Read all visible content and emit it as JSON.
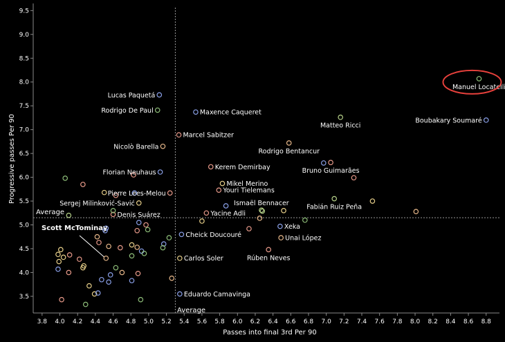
{
  "chart_data": {
    "type": "scatter",
    "xlabel": "Passes into final 3rd Per 90",
    "ylabel": "Progressive passes Per 90",
    "xlim": [
      3.7,
      8.95
    ],
    "ylim": [
      3.15,
      9.65
    ],
    "x_ticks": [
      "3.8",
      "4.0",
      "4.2",
      "4.4",
      "4.6",
      "4.8",
      "5.0",
      "5.2",
      "5.4",
      "5.6",
      "5.8",
      "6.0",
      "6.2",
      "6.4",
      "6.6",
      "6.8",
      "7.0",
      "7.2",
      "7.4",
      "7.6",
      "7.8",
      "8.0",
      "8.2",
      "8.4",
      "8.6",
      "8.8"
    ],
    "y_ticks": [
      "3.5",
      "4.0",
      "4.5",
      "5.0",
      "5.5",
      "6.0",
      "6.5",
      "7.0",
      "7.5",
      "8.0",
      "8.5",
      "9.0",
      "9.5"
    ],
    "grid": false,
    "average_x": 5.3,
    "average_y": 5.15,
    "average_label_x": "Average",
    "average_label_y": "Average",
    "highlight": "Manuel Locatelli",
    "annotation": "Scott McTominay",
    "colors": {
      "background": "#000000",
      "text": "#ffffff",
      "axis": "#8a8a8a",
      "highlight_ring": "#e8413c",
      "average_line": "#9a9a9a"
    },
    "points": [
      {
        "name": "Manuel Locatelli",
        "x": 8.72,
        "y": 8.07,
        "color": "#8fbf7a",
        "label_pos": "below"
      },
      {
        "name": "Boubakary Soumaré",
        "x": 8.8,
        "y": 7.2,
        "color": "#8aa0e8",
        "label_pos": "left"
      },
      {
        "name": "Lucas Paquetá",
        "x": 5.12,
        "y": 7.73,
        "color": "#8aa0e8",
        "label_pos": "left"
      },
      {
        "name": "Rodrigo De Paul",
        "x": 5.1,
        "y": 7.41,
        "color": "#8fbf7a",
        "label_pos": "left"
      },
      {
        "name": "Maxence Caqueret",
        "x": 5.53,
        "y": 7.37,
        "color": "#8aa0e8",
        "label_pos": "right"
      },
      {
        "name": "Matteo Ricci",
        "x": 7.16,
        "y": 7.26,
        "color": "#b8d48a",
        "label_pos": "below"
      },
      {
        "name": "Marcel Sabitzer",
        "x": 5.34,
        "y": 6.89,
        "color": "#e89a8a",
        "label_pos": "right"
      },
      {
        "name": "Nicolò Barella",
        "x": 5.16,
        "y": 6.65,
        "color": "#e8b88a",
        "label_pos": "left"
      },
      {
        "name": "Rodrigo Bentancur",
        "x": 6.58,
        "y": 6.72,
        "color": "#e8b88a",
        "label_pos": "below"
      },
      {
        "name": "Florian Neuhaus",
        "x": 5.13,
        "y": 6.11,
        "color": "#8aa0e8",
        "label_pos": "left"
      },
      {
        "name": "Kerem Demirbay",
        "x": 5.7,
        "y": 6.22,
        "color": "#e89a8a",
        "label_pos": "right"
      },
      {
        "name": "Bruno Guimarães",
        "x": 7.05,
        "y": 6.31,
        "color": "#e89a8a",
        "label_pos": "below"
      },
      {
        "name": "Mikel Merino",
        "x": 5.83,
        "y": 5.87,
        "color": "#e8d08a",
        "label_pos": "right"
      },
      {
        "name": "Pierre Lees-Melou",
        "x": 5.24,
        "y": 5.67,
        "color": "#e89a8a",
        "label_pos": "left"
      },
      {
        "name": "Youri Tielemans",
        "x": 5.79,
        "y": 5.73,
        "color": "#e89a8a",
        "label_pos": "right"
      },
      {
        "name": "Sergej Milinković-Savić",
        "x": 4.89,
        "y": 5.46,
        "color": "#e8d08a",
        "label_pos": "left"
      },
      {
        "name": "Ismaël Bennacer",
        "x": 6.27,
        "y": 5.31,
        "color": "#b8d48a",
        "label_pos": "above"
      },
      {
        "name": "Fabián Ruiz Peña",
        "x": 7.09,
        "y": 5.55,
        "color": "#b8d48a",
        "label_pos": "below"
      },
      {
        "name": "Denis Suárez",
        "x": 4.6,
        "y": 5.22,
        "color": "#e89a8a",
        "label_pos": "right"
      },
      {
        "name": "Yacine Adli",
        "x": 5.65,
        "y": 5.25,
        "color": "#e89a8a",
        "label_pos": "right"
      },
      {
        "name": "Xeka",
        "x": 6.48,
        "y": 4.97,
        "color": "#8aa0e8",
        "label_pos": "right"
      },
      {
        "name": "Cheick Doucouré",
        "x": 5.37,
        "y": 4.8,
        "color": "#8aa0e8",
        "label_pos": "right"
      },
      {
        "name": "Unai López",
        "x": 6.49,
        "y": 4.73,
        "color": "#e8b88a",
        "label_pos": "right"
      },
      {
        "name": "Rúben Neves",
        "x": 6.35,
        "y": 4.48,
        "color": "#e89a8a",
        "label_pos": "below"
      },
      {
        "name": "Carlos Soler",
        "x": 5.35,
        "y": 4.3,
        "color": "#e8d08a",
        "label_pos": "right"
      },
      {
        "name": "Eduardo Camavinga",
        "x": 5.35,
        "y": 3.55,
        "color": "#8aa0e8",
        "label_pos": "right"
      },
      {
        "name": "Scott McTominay",
        "x": 4.52,
        "y": 4.3,
        "color": "#e8b88a",
        "label_pos": "none"
      },
      {
        "name": "",
        "x": 4.06,
        "y": 5.98,
        "color": "#8fbf7a",
        "label_pos": "none"
      },
      {
        "name": "",
        "x": 4.26,
        "y": 5.85,
        "color": "#e89a8a",
        "label_pos": "none"
      },
      {
        "name": "",
        "x": 4.5,
        "y": 5.68,
        "color": "#e8d08a",
        "label_pos": "none"
      },
      {
        "name": "",
        "x": 4.83,
        "y": 6.05,
        "color": "#e89a8a",
        "label_pos": "none"
      },
      {
        "name": "",
        "x": 4.63,
        "y": 5.62,
        "color": "#e89a8a",
        "label_pos": "none"
      },
      {
        "name": "",
        "x": 4.84,
        "y": 5.67,
        "color": "#8aa0e8",
        "label_pos": "none"
      },
      {
        "name": "",
        "x": 5.87,
        "y": 5.4,
        "color": "#8aa0e8",
        "label_pos": "none"
      },
      {
        "name": "",
        "x": 6.52,
        "y": 5.3,
        "color": "#e8d08a",
        "label_pos": "none"
      },
      {
        "name": "",
        "x": 6.28,
        "y": 5.29,
        "color": "#b8d48a",
        "label_pos": "none"
      },
      {
        "name": "",
        "x": 7.31,
        "y": 5.99,
        "color": "#e89a8a",
        "label_pos": "none"
      },
      {
        "name": "",
        "x": 6.97,
        "y": 6.3,
        "color": "#8aa0e8",
        "label_pos": "none"
      },
      {
        "name": "",
        "x": 7.52,
        "y": 5.5,
        "color": "#e8d08a",
        "label_pos": "none"
      },
      {
        "name": "",
        "x": 8.01,
        "y": 5.28,
        "color": "#e8b88a",
        "label_pos": "none"
      },
      {
        "name": "",
        "x": 6.76,
        "y": 5.1,
        "color": "#8fbf7a",
        "label_pos": "none"
      },
      {
        "name": "",
        "x": 6.25,
        "y": 5.14,
        "color": "#e8b88a",
        "label_pos": "none"
      },
      {
        "name": "",
        "x": 6.13,
        "y": 4.92,
        "color": "#e89a8a",
        "label_pos": "none"
      },
      {
        "name": "",
        "x": 5.6,
        "y": 5.08,
        "color": "#e8d08a",
        "label_pos": "none"
      },
      {
        "name": "",
        "x": 4.6,
        "y": 5.3,
        "color": "#8fbf7a",
        "label_pos": "none"
      },
      {
        "name": "",
        "x": 4.1,
        "y": 5.2,
        "color": "#b8d48a",
        "label_pos": "none"
      },
      {
        "name": "",
        "x": 4.52,
        "y": 4.93,
        "color": "#8aa0e8",
        "label_pos": "none"
      },
      {
        "name": "",
        "x": 4.51,
        "y": 4.88,
        "color": "#8aa0e8",
        "label_pos": "none"
      },
      {
        "name": "",
        "x": 4.89,
        "y": 5.05,
        "color": "#8aa0e8",
        "label_pos": "none"
      },
      {
        "name": "",
        "x": 4.97,
        "y": 5.0,
        "color": "#e89a8a",
        "label_pos": "none"
      },
      {
        "name": "",
        "x": 4.99,
        "y": 4.9,
        "color": "#8fbf7a",
        "label_pos": "none"
      },
      {
        "name": "",
        "x": 4.87,
        "y": 4.88,
        "color": "#e89a8a",
        "label_pos": "none"
      },
      {
        "name": "",
        "x": 4.42,
        "y": 4.75,
        "color": "#e8b88a",
        "label_pos": "none"
      },
      {
        "name": "",
        "x": 4.44,
        "y": 4.63,
        "color": "#e89a8a",
        "label_pos": "none"
      },
      {
        "name": "",
        "x": 4.55,
        "y": 4.55,
        "color": "#e8b88a",
        "label_pos": "none"
      },
      {
        "name": "",
        "x": 4.68,
        "y": 4.52,
        "color": "#e89a8a",
        "label_pos": "none"
      },
      {
        "name": "",
        "x": 4.81,
        "y": 4.58,
        "color": "#e8d08a",
        "label_pos": "none"
      },
      {
        "name": "",
        "x": 4.87,
        "y": 4.53,
        "color": "#e8b88a",
        "label_pos": "none"
      },
      {
        "name": "",
        "x": 4.92,
        "y": 4.45,
        "color": "#8aa0e8",
        "label_pos": "none"
      },
      {
        "name": "",
        "x": 4.95,
        "y": 4.4,
        "color": "#8fbf7a",
        "label_pos": "none"
      },
      {
        "name": "",
        "x": 4.81,
        "y": 4.35,
        "color": "#8fbf7a",
        "label_pos": "none"
      },
      {
        "name": "",
        "x": 5.17,
        "y": 4.6,
        "color": "#8aa0e8",
        "label_pos": "none"
      },
      {
        "name": "",
        "x": 5.16,
        "y": 4.52,
        "color": "#8fbf7a",
        "label_pos": "none"
      },
      {
        "name": "",
        "x": 5.23,
        "y": 4.73,
        "color": "#8fbf7a",
        "label_pos": "none"
      },
      {
        "name": "",
        "x": 4.01,
        "y": 4.48,
        "color": "#e8d08a",
        "label_pos": "none"
      },
      {
        "name": "",
        "x": 3.98,
        "y": 4.38,
        "color": "#e8d08a",
        "label_pos": "none"
      },
      {
        "name": "",
        "x": 4.04,
        "y": 4.32,
        "color": "#e8d08a",
        "label_pos": "none"
      },
      {
        "name": "",
        "x": 3.99,
        "y": 4.23,
        "color": "#e8d08a",
        "label_pos": "none"
      },
      {
        "name": "",
        "x": 4.11,
        "y": 4.37,
        "color": "#e89a8a",
        "label_pos": "none"
      },
      {
        "name": "",
        "x": 4.22,
        "y": 4.28,
        "color": "#e89a8a",
        "label_pos": "none"
      },
      {
        "name": "",
        "x": 4.27,
        "y": 4.14,
        "color": "#e8d08a",
        "label_pos": "none"
      },
      {
        "name": "",
        "x": 4.26,
        "y": 4.1,
        "color": "#e8d08a",
        "label_pos": "none"
      },
      {
        "name": "",
        "x": 3.98,
        "y": 4.07,
        "color": "#8aa0e8",
        "label_pos": "none"
      },
      {
        "name": "",
        "x": 4.1,
        "y": 4.0,
        "color": "#e89a8a",
        "label_pos": "none"
      },
      {
        "name": "",
        "x": 4.63,
        "y": 4.1,
        "color": "#8fbf7a",
        "label_pos": "none"
      },
      {
        "name": "",
        "x": 4.7,
        "y": 4.0,
        "color": "#e8b88a",
        "label_pos": "none"
      },
      {
        "name": "",
        "x": 4.57,
        "y": 3.95,
        "color": "#8aa0e8",
        "label_pos": "none"
      },
      {
        "name": "",
        "x": 4.47,
        "y": 3.85,
        "color": "#8aa0e8",
        "label_pos": "none"
      },
      {
        "name": "",
        "x": 4.55,
        "y": 3.8,
        "color": "#8aa0e8",
        "label_pos": "none"
      },
      {
        "name": "",
        "x": 4.81,
        "y": 3.83,
        "color": "#8aa0e8",
        "label_pos": "none"
      },
      {
        "name": "",
        "x": 4.88,
        "y": 3.98,
        "color": "#e89a8a",
        "label_pos": "none"
      },
      {
        "name": "",
        "x": 5.26,
        "y": 3.88,
        "color": "#e8b88a",
        "label_pos": "none"
      },
      {
        "name": "",
        "x": 4.33,
        "y": 3.72,
        "color": "#e8d08a",
        "label_pos": "none"
      },
      {
        "name": "",
        "x": 4.39,
        "y": 3.55,
        "color": "#e8d08a",
        "label_pos": "none"
      },
      {
        "name": "",
        "x": 4.43,
        "y": 3.57,
        "color": "#8aa0e8",
        "label_pos": "none"
      },
      {
        "name": "",
        "x": 4.02,
        "y": 3.43,
        "color": "#e89a8a",
        "label_pos": "none"
      },
      {
        "name": "",
        "x": 4.29,
        "y": 3.33,
        "color": "#8fbf7a",
        "label_pos": "none"
      },
      {
        "name": "",
        "x": 4.91,
        "y": 3.43,
        "color": "#8fbf7a",
        "label_pos": "none"
      }
    ]
  }
}
